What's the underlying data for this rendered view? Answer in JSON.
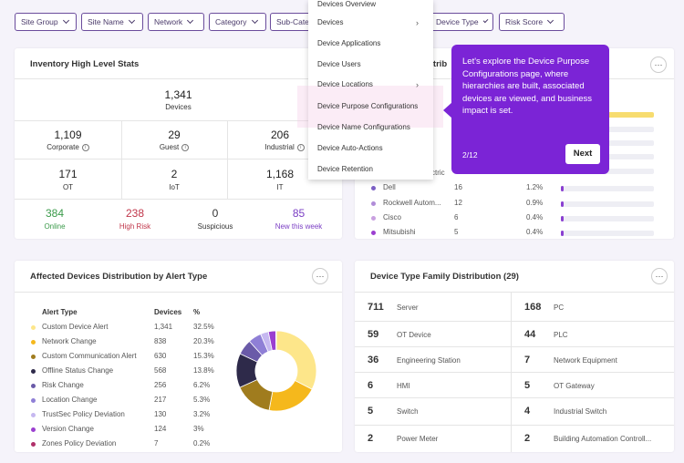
{
  "filters": [
    "Site Group",
    "Site Name",
    "Network",
    "Category",
    "Sub-Cate",
    "Device Type",
    "Risk Score"
  ],
  "inventory": {
    "title": "Inventory High Level Stats",
    "total": {
      "value": "1,341",
      "label": "Devices"
    },
    "row2": [
      {
        "value": "1,109",
        "label": "Corporate"
      },
      {
        "value": "29",
        "label": "Guest"
      },
      {
        "value": "206",
        "label": "Industrial"
      }
    ],
    "row3": [
      {
        "value": "171",
        "label": "OT"
      },
      {
        "value": "2",
        "label": "IoT"
      },
      {
        "value": "1,168",
        "label": "IT"
      }
    ],
    "row4": [
      {
        "value": "384",
        "label": "Online",
        "color": "#3a9a4a"
      },
      {
        "value": "238",
        "label": "High Risk",
        "color": "#c0364a"
      },
      {
        "value": "0",
        "label": "Suspicious",
        "color": "#333333"
      },
      {
        "value": "85",
        "label": "New this week",
        "color": "#7b3fc4"
      }
    ]
  },
  "menu": {
    "items": [
      "Devices Overview",
      "Devices",
      "Device Applications",
      "Device Users",
      "Device Locations",
      "Device Purpose Configurations",
      "Device Name Configurations",
      "Device Auto-Actions",
      "Device Retention"
    ]
  },
  "tooltip": {
    "text": "Let's explore the Device Purpose Configurations page, where hierarchies are built, associated devices are viewed, and business impact is set.",
    "step": "2/12",
    "next_label": "Next"
  },
  "vendor_card": {
    "title_fragment": "istrib",
    "partial_label": "ctric",
    "rows": [
      {
        "name": "Dell",
        "count": "16",
        "pct": "1.2%",
        "fill": 0.02,
        "color": "#7b5fc4"
      },
      {
        "name": "Rockwell Autom...",
        "count": "12",
        "pct": "0.9%",
        "fill": 0.015,
        "color": "#b08cd8"
      },
      {
        "name": "Cisco",
        "count": "6",
        "pct": "0.4%",
        "fill": 0.01,
        "color": "#c9a0e0"
      },
      {
        "name": "Mitsubishi",
        "count": "5",
        "pct": "0.4%",
        "fill": 0.01,
        "color": "#9b3fd0"
      }
    ]
  },
  "alerts": {
    "title": "Affected Devices Distribution by Alert Type",
    "headers": {
      "type": "Alert Type",
      "devices": "Devices",
      "pct": "%"
    },
    "rows": [
      {
        "name": "Custom Device Alert",
        "count": "1,341",
        "pct": "32.5%",
        "color": "#fde68a"
      },
      {
        "name": "Network Change",
        "count": "838",
        "pct": "20.3%",
        "color": "#f5b81c"
      },
      {
        "name": "Custom Communication Alert",
        "count": "630",
        "pct": "15.3%",
        "color": "#a07c1e"
      },
      {
        "name": "Offline Status Change",
        "count": "568",
        "pct": "13.8%",
        "color": "#2e2a4a"
      },
      {
        "name": "Risk Change",
        "count": "256",
        "pct": "6.2%",
        "color": "#6a5aa8"
      },
      {
        "name": "Location Change",
        "count": "217",
        "pct": "5.3%",
        "color": "#8f7fd6"
      },
      {
        "name": "TrustSec Policy Deviation",
        "count": "130",
        "pct": "3.2%",
        "color": "#c6b8f0"
      },
      {
        "name": "Version Change",
        "count": "124",
        "pct": "3%",
        "color": "#9b3fd0"
      },
      {
        "name": "Zones Policy Deviation",
        "count": "7",
        "pct": "0.2%",
        "color": "#b0306a"
      }
    ]
  },
  "family": {
    "title": "Device Type Family Distribution (29)",
    "left": [
      {
        "num": "711",
        "label": "Server"
      },
      {
        "num": "59",
        "label": "OT Device"
      },
      {
        "num": "36",
        "label": "Engineering Station"
      },
      {
        "num": "6",
        "label": "HMI"
      },
      {
        "num": "5",
        "label": "Switch"
      },
      {
        "num": "2",
        "label": "Power Meter"
      }
    ],
    "right": [
      {
        "num": "168",
        "label": "PC"
      },
      {
        "num": "44",
        "label": "PLC"
      },
      {
        "num": "7",
        "label": "Network Equipment"
      },
      {
        "num": "5",
        "label": "OT Gateway"
      },
      {
        "num": "4",
        "label": "Industrial Switch"
      },
      {
        "num": "2",
        "label": "Building Automation Controll..."
      }
    ]
  }
}
